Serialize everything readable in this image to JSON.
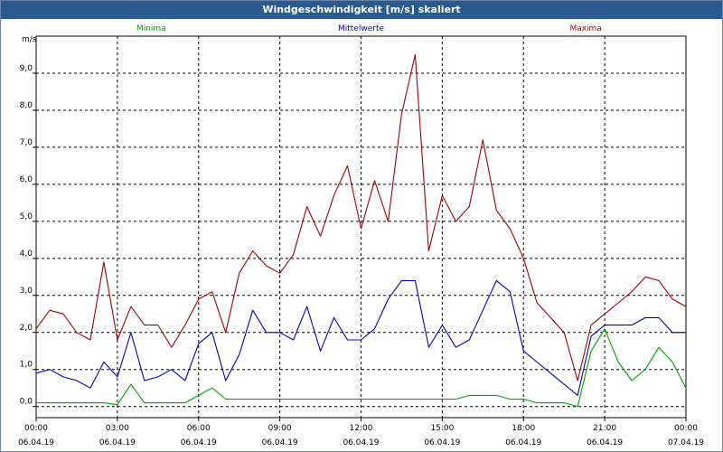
{
  "window": {
    "title": "Windgeschwindigkeit [m/s] skaliert"
  },
  "chart_data": {
    "type": "line",
    "ylabel": "m/s",
    "ylim": [
      -0.3,
      10.0
    ],
    "yticks": [
      0.0,
      1.0,
      2.0,
      3.0,
      4.0,
      5.0,
      6.0,
      7.0,
      8.0,
      9.0
    ],
    "ytick_labels": [
      "0,0",
      "1,0",
      "2,0",
      "3,0",
      "4,0",
      "5,0",
      "6,0",
      "7,0",
      "8,0",
      "9,0"
    ],
    "xlim": [
      0,
      24
    ],
    "xticks": [
      0,
      3,
      6,
      9,
      12,
      15,
      18,
      21,
      24
    ],
    "xtick_times": [
      "00:00",
      "03:00",
      "06:00",
      "09:00",
      "12:00",
      "15:00",
      "18:00",
      "21:00",
      "00:00"
    ],
    "xtick_dates": [
      "06.04.19",
      "06.04.19",
      "06.04.19",
      "06.04.19",
      "06.04.19",
      "06.04.19",
      "06.04.19",
      "06.04.19",
      "07.04.19"
    ],
    "grid": true,
    "x": [
      0,
      0.5,
      1,
      1.5,
      2,
      2.5,
      3,
      3.5,
      4,
      4.5,
      5,
      5.5,
      6,
      6.5,
      7,
      7.5,
      8,
      8.5,
      9,
      9.5,
      10,
      10.5,
      11,
      11.5,
      12,
      12.5,
      13,
      13.5,
      14,
      14.5,
      15,
      15.5,
      16,
      16.5,
      17,
      17.5,
      18,
      18.5,
      19,
      19.5,
      20,
      20.5,
      21,
      21.5,
      22,
      22.5,
      23,
      23.5,
      24
    ],
    "series": [
      {
        "name": "Minima",
        "color": "#00a000",
        "values": [
          0.1,
          0.1,
          0.1,
          0.1,
          0.1,
          0.1,
          0.05,
          0.6,
          0.1,
          0.1,
          0.1,
          0.1,
          0.3,
          0.5,
          0.2,
          0.2,
          0.2,
          0.2,
          0.2,
          0.2,
          0.2,
          0.2,
          0.2,
          0.2,
          0.2,
          0.2,
          0.2,
          0.2,
          0.2,
          0.2,
          0.2,
          0.2,
          0.3,
          0.3,
          0.3,
          0.2,
          0.2,
          0.1,
          0.1,
          0.1,
          0.0,
          1.5,
          2.1,
          1.2,
          0.7,
          1.0,
          1.6,
          1.2,
          0.5
        ]
      },
      {
        "name": "Mittelwerte",
        "color": "#0000c0",
        "values": [
          0.9,
          1.0,
          0.8,
          0.7,
          0.5,
          1.2,
          0.8,
          2.0,
          0.7,
          0.8,
          1.0,
          0.7,
          1.7,
          2.0,
          0.7,
          1.4,
          2.6,
          2.0,
          2.0,
          1.8,
          2.7,
          1.5,
          2.4,
          1.8,
          1.8,
          2.1,
          2.9,
          3.4,
          3.4,
          1.6,
          2.2,
          1.6,
          1.8,
          2.6,
          3.4,
          3.1,
          1.5,
          1.2,
          0.9,
          0.6,
          0.3,
          1.9,
          2.2,
          2.2,
          2.2,
          2.4,
          2.4,
          2.0,
          2.0
        ]
      },
      {
        "name": "Maxima",
        "color": "#a00000",
        "values": [
          2.1,
          2.6,
          2.5,
          2.0,
          1.8,
          3.9,
          1.8,
          2.7,
          2.2,
          2.2,
          1.6,
          2.2,
          2.9,
          3.1,
          2.0,
          3.6,
          4.2,
          3.8,
          3.6,
          4.1,
          5.4,
          4.6,
          5.7,
          6.5,
          4.8,
          6.1,
          5.0,
          7.9,
          9.5,
          4.2,
          5.7,
          5.0,
          5.4,
          7.2,
          5.3,
          4.8,
          4.0,
          2.8,
          2.4,
          2.0,
          0.7,
          2.2,
          2.5,
          2.8,
          3.1,
          3.5,
          3.4,
          2.9,
          2.7
        ]
      }
    ]
  }
}
